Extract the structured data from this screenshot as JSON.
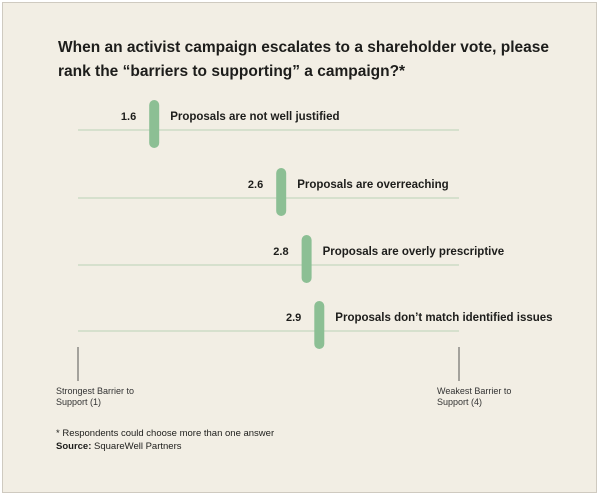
{
  "chart_data": {
    "type": "dot",
    "title": "When an activist campaign escalates to a shareholder vote, please rank the “barriers to supporting” a campaign?*",
    "categories": [
      "Proposals are not well justified",
      "Proposals are overreaching",
      "Proposals are overly prescriptive",
      "Proposals don’t match identified issues"
    ],
    "values": [
      1.6,
      2.6,
      2.8,
      2.9
    ],
    "color": "#8cbf94",
    "xlim": [
      1,
      4
    ],
    "xticks": [
      {
        "value": 1,
        "label": "Strongest Barrier to Support (1)"
      },
      {
        "value": 4,
        "label": "Weakest Barrier to Support (4)"
      }
    ],
    "footnote": "* Respondents could choose more than one answer",
    "source_label": "Source:",
    "source": "SquareWell Partners"
  }
}
